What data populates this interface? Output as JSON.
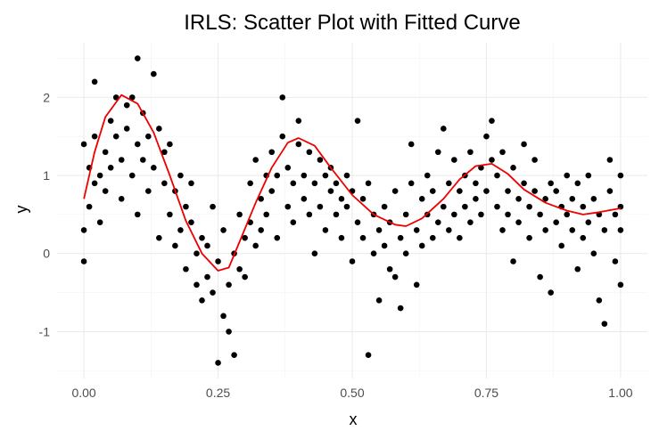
{
  "chart_data": {
    "type": "scatter",
    "title": "IRLS: Scatter Plot with Fitted Curve",
    "xlabel": "x",
    "ylabel": "y",
    "xlim": [
      -0.05,
      1.05
    ],
    "ylim": [
      -1.6,
      2.7
    ],
    "x_ticks": [
      0.0,
      0.25,
      0.5,
      0.75,
      1.0
    ],
    "x_tick_labels": [
      "0.00",
      "0.25",
      "0.50",
      "0.75",
      "1.00"
    ],
    "y_ticks": [
      -1,
      0,
      1,
      2
    ],
    "y_tick_labels": [
      "-1",
      "0",
      "1",
      "2"
    ],
    "grid": true,
    "legend": "none",
    "series": [
      {
        "type": "scatter",
        "color": "#000000",
        "points": [
          [
            0.0,
            -0.1
          ],
          [
            0.0,
            0.3
          ],
          [
            0.0,
            1.4
          ],
          [
            0.01,
            0.6
          ],
          [
            0.01,
            1.1
          ],
          [
            0.02,
            0.9
          ],
          [
            0.02,
            1.5
          ],
          [
            0.02,
            2.2
          ],
          [
            0.03,
            0.4
          ],
          [
            0.03,
            1.0
          ],
          [
            0.04,
            1.3
          ],
          [
            0.04,
            0.8
          ],
          [
            0.05,
            1.7
          ],
          [
            0.05,
            1.1
          ],
          [
            0.06,
            2.0
          ],
          [
            0.06,
            1.5
          ],
          [
            0.07,
            0.7
          ],
          [
            0.07,
            1.2
          ],
          [
            0.08,
            1.9
          ],
          [
            0.08,
            1.6
          ],
          [
            0.09,
            2.0
          ],
          [
            0.09,
            1.0
          ],
          [
            0.1,
            1.4
          ],
          [
            0.1,
            0.5
          ],
          [
            0.1,
            2.5
          ],
          [
            0.11,
            1.8
          ],
          [
            0.11,
            1.2
          ],
          [
            0.12,
            1.5
          ],
          [
            0.12,
            0.8
          ],
          [
            0.13,
            1.1
          ],
          [
            0.13,
            2.3
          ],
          [
            0.14,
            1.6
          ],
          [
            0.14,
            0.2
          ],
          [
            0.15,
            1.3
          ],
          [
            0.15,
            0.9
          ],
          [
            0.16,
            0.5
          ],
          [
            0.16,
            1.4
          ],
          [
            0.17,
            0.8
          ],
          [
            0.17,
            0.1
          ],
          [
            0.18,
            1.0
          ],
          [
            0.18,
            0.3
          ],
          [
            0.19,
            0.6
          ],
          [
            0.19,
            -0.2
          ],
          [
            0.2,
            0.4
          ],
          [
            0.2,
            0.9
          ],
          [
            0.21,
            0.0
          ],
          [
            0.21,
            -0.4
          ],
          [
            0.22,
            0.2
          ],
          [
            0.22,
            -0.6
          ],
          [
            0.23,
            0.1
          ],
          [
            0.23,
            -0.3
          ],
          [
            0.24,
            0.6
          ],
          [
            0.24,
            -0.5
          ],
          [
            0.25,
            -1.4
          ],
          [
            0.25,
            -0.1
          ],
          [
            0.26,
            -0.8
          ],
          [
            0.26,
            0.3
          ],
          [
            0.27,
            -1.0
          ],
          [
            0.27,
            -0.4
          ],
          [
            0.28,
            -1.3
          ],
          [
            0.28,
            0.0
          ],
          [
            0.29,
            -0.2
          ],
          [
            0.29,
            0.5
          ],
          [
            0.3,
            0.2
          ],
          [
            0.3,
            -0.3
          ],
          [
            0.31,
            0.9
          ],
          [
            0.31,
            0.4
          ],
          [
            0.32,
            0.1
          ],
          [
            0.32,
            1.2
          ],
          [
            0.33,
            0.7
          ],
          [
            0.33,
            0.3
          ],
          [
            0.34,
            1.0
          ],
          [
            0.34,
            0.5
          ],
          [
            0.35,
            1.3
          ],
          [
            0.35,
            0.8
          ],
          [
            0.36,
            0.2
          ],
          [
            0.36,
            1.0
          ],
          [
            0.37,
            2.0
          ],
          [
            0.37,
            1.5
          ],
          [
            0.38,
            0.6
          ],
          [
            0.38,
            1.1
          ],
          [
            0.39,
            0.9
          ],
          [
            0.39,
            0.4
          ],
          [
            0.4,
            1.4
          ],
          [
            0.4,
            1.7
          ],
          [
            0.41,
            0.7
          ],
          [
            0.41,
            1.0
          ],
          [
            0.42,
            0.5
          ],
          [
            0.42,
            1.3
          ],
          [
            0.43,
            0.9
          ],
          [
            0.43,
            0.0
          ],
          [
            0.44,
            1.2
          ],
          [
            0.44,
            0.6
          ],
          [
            0.45,
            1.0
          ],
          [
            0.45,
            0.3
          ],
          [
            0.46,
            0.8
          ],
          [
            0.46,
            1.1
          ],
          [
            0.47,
            0.5
          ],
          [
            0.47,
            0.9
          ],
          [
            0.48,
            0.7
          ],
          [
            0.48,
            0.2
          ],
          [
            0.49,
            1.0
          ],
          [
            0.49,
            0.6
          ],
          [
            0.5,
            -0.1
          ],
          [
            0.5,
            0.8
          ],
          [
            0.51,
            1.7
          ],
          [
            0.51,
            0.4
          ],
          [
            0.52,
            0.7
          ],
          [
            0.52,
            0.2
          ],
          [
            0.53,
            0.9
          ],
          [
            0.53,
            -1.3
          ],
          [
            0.54,
            0.5
          ],
          [
            0.54,
            0.0
          ],
          [
            0.55,
            0.3
          ],
          [
            0.55,
            -0.6
          ],
          [
            0.56,
            0.6
          ],
          [
            0.56,
            0.1
          ],
          [
            0.57,
            -0.2
          ],
          [
            0.57,
            0.4
          ],
          [
            0.58,
            0.8
          ],
          [
            0.58,
            -0.3
          ],
          [
            0.59,
            0.2
          ],
          [
            0.59,
            -0.7
          ],
          [
            0.6,
            0.5
          ],
          [
            0.6,
            0.0
          ],
          [
            0.61,
            0.9
          ],
          [
            0.61,
            1.4
          ],
          [
            0.62,
            0.3
          ],
          [
            0.62,
            -0.4
          ],
          [
            0.63,
            0.7
          ],
          [
            0.63,
            0.1
          ],
          [
            0.64,
            0.5
          ],
          [
            0.64,
            1.0
          ],
          [
            0.65,
            0.2
          ],
          [
            0.65,
            0.8
          ],
          [
            0.66,
            0.4
          ],
          [
            0.66,
            1.3
          ],
          [
            0.67,
            0.6
          ],
          [
            0.67,
            1.6
          ],
          [
            0.68,
            0.3
          ],
          [
            0.68,
            0.9
          ],
          [
            0.69,
            1.2
          ],
          [
            0.69,
            0.5
          ],
          [
            0.7,
            0.8
          ],
          [
            0.7,
            0.2
          ],
          [
            0.71,
            1.0
          ],
          [
            0.71,
            0.6
          ],
          [
            0.72,
            1.3
          ],
          [
            0.72,
            0.4
          ],
          [
            0.73,
            0.9
          ],
          [
            0.73,
            0.7
          ],
          [
            0.74,
            1.1
          ],
          [
            0.74,
            0.5
          ],
          [
            0.75,
            1.5
          ],
          [
            0.75,
            0.8
          ],
          [
            0.76,
            1.7
          ],
          [
            0.76,
            1.2
          ],
          [
            0.77,
            0.6
          ],
          [
            0.77,
            1.0
          ],
          [
            0.78,
            0.3
          ],
          [
            0.78,
            1.3
          ],
          [
            0.79,
            0.8
          ],
          [
            0.79,
            0.5
          ],
          [
            0.8,
            1.1
          ],
          [
            0.8,
            -0.1
          ],
          [
            0.81,
            0.7
          ],
          [
            0.81,
            0.4
          ],
          [
            0.82,
            1.4
          ],
          [
            0.82,
            0.9
          ],
          [
            0.83,
            0.6
          ],
          [
            0.83,
            0.2
          ],
          [
            0.84,
            0.8
          ],
          [
            0.84,
            1.2
          ],
          [
            0.85,
            0.5
          ],
          [
            0.85,
            -0.3
          ],
          [
            0.86,
            0.7
          ],
          [
            0.86,
            0.3
          ],
          [
            0.87,
            0.9
          ],
          [
            0.87,
            -0.5
          ],
          [
            0.88,
            0.4
          ],
          [
            0.88,
            0.8
          ],
          [
            0.89,
            0.6
          ],
          [
            0.89,
            0.1
          ],
          [
            0.9,
            1.0
          ],
          [
            0.9,
            0.5
          ],
          [
            0.91,
            0.3
          ],
          [
            0.91,
            0.7
          ],
          [
            0.92,
            0.9
          ],
          [
            0.92,
            -0.2
          ],
          [
            0.93,
            0.6
          ],
          [
            0.93,
            0.2
          ],
          [
            0.94,
            0.4
          ],
          [
            0.94,
            1.0
          ],
          [
            0.95,
            0.7
          ],
          [
            0.95,
            0.0
          ],
          [
            0.96,
            -0.6
          ],
          [
            0.96,
            0.5
          ],
          [
            0.97,
            0.3
          ],
          [
            0.97,
            -0.9
          ],
          [
            0.98,
            0.8
          ],
          [
            0.98,
            1.2
          ],
          [
            0.99,
            0.5
          ],
          [
            0.99,
            -0.1
          ],
          [
            1.0,
            0.6
          ],
          [
            1.0,
            1.0
          ],
          [
            1.0,
            -0.4
          ],
          [
            1.0,
            0.3
          ]
        ]
      },
      {
        "type": "line",
        "color": "#ee0000",
        "points": [
          [
            0.0,
            0.7
          ],
          [
            0.02,
            1.3
          ],
          [
            0.04,
            1.75
          ],
          [
            0.07,
            2.03
          ],
          [
            0.1,
            1.92
          ],
          [
            0.13,
            1.55
          ],
          [
            0.16,
            1.0
          ],
          [
            0.19,
            0.42
          ],
          [
            0.22,
            0.0
          ],
          [
            0.25,
            -0.22
          ],
          [
            0.27,
            -0.18
          ],
          [
            0.29,
            0.15
          ],
          [
            0.32,
            0.65
          ],
          [
            0.35,
            1.1
          ],
          [
            0.38,
            1.42
          ],
          [
            0.4,
            1.48
          ],
          [
            0.43,
            1.38
          ],
          [
            0.46,
            1.1
          ],
          [
            0.5,
            0.75
          ],
          [
            0.54,
            0.5
          ],
          [
            0.58,
            0.37
          ],
          [
            0.6,
            0.35
          ],
          [
            0.63,
            0.45
          ],
          [
            0.67,
            0.7
          ],
          [
            0.7,
            0.95
          ],
          [
            0.73,
            1.12
          ],
          [
            0.76,
            1.15
          ],
          [
            0.79,
            1.02
          ],
          [
            0.82,
            0.82
          ],
          [
            0.86,
            0.65
          ],
          [
            0.9,
            0.55
          ],
          [
            0.93,
            0.5
          ],
          [
            0.96,
            0.53
          ],
          [
            1.0,
            0.58
          ]
        ]
      }
    ]
  }
}
